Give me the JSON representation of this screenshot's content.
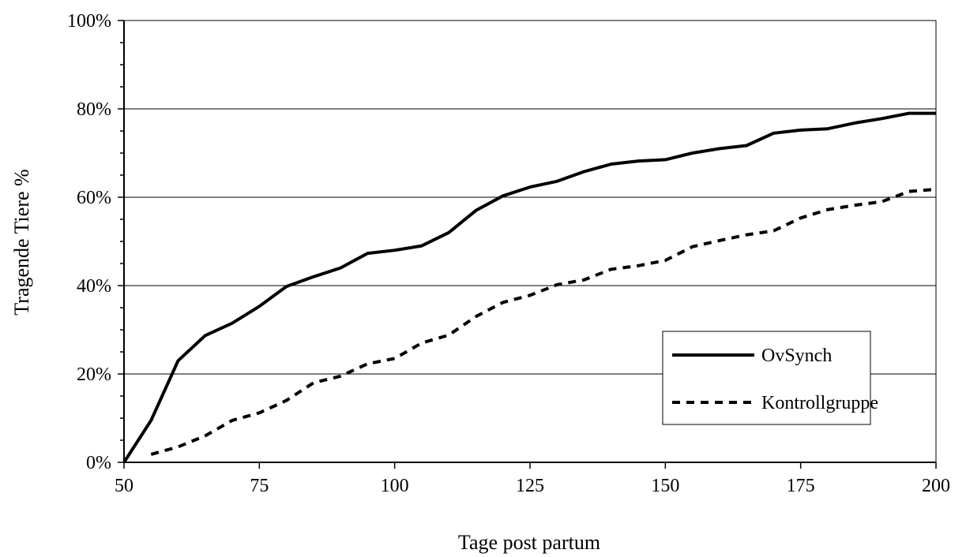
{
  "chart_data": {
    "type": "line",
    "title": "",
    "xlabel": "Tage post partum",
    "ylabel": "Tragende Tiere %",
    "xlim": [
      50,
      200
    ],
    "ylim": [
      0,
      100
    ],
    "x_ticks": [
      50,
      75,
      100,
      125,
      150,
      175,
      200
    ],
    "x_tick_labels": [
      "50",
      "75",
      "100",
      "125",
      "150",
      "175",
      "200"
    ],
    "y_ticks": [
      0,
      20,
      40,
      60,
      80,
      100
    ],
    "y_tick_labels": [
      "0%",
      "20%",
      "40%",
      "60%",
      "80%",
      "100%"
    ],
    "y_minor_step": 5,
    "grid": "horizontal",
    "legend_position": "lower-right",
    "series": [
      {
        "name": "OvSynch",
        "style": "solid",
        "color": "#000000",
        "points": [
          [
            50,
            0
          ],
          [
            55,
            9.5
          ],
          [
            60,
            23
          ],
          [
            65,
            28.7
          ],
          [
            70,
            31.5
          ],
          [
            75,
            35.3
          ],
          [
            80,
            39.8
          ],
          [
            85,
            42
          ],
          [
            90,
            44
          ],
          [
            95,
            47.3
          ],
          [
            100,
            48
          ],
          [
            105,
            49
          ],
          [
            110,
            52
          ],
          [
            115,
            57
          ],
          [
            120,
            60.3
          ],
          [
            125,
            62.3
          ],
          [
            130,
            63.6
          ],
          [
            135,
            65.8
          ],
          [
            140,
            67.5
          ],
          [
            145,
            68.2
          ],
          [
            150,
            68.5
          ],
          [
            155,
            70
          ],
          [
            160,
            71
          ],
          [
            165,
            71.7
          ],
          [
            170,
            74.5
          ],
          [
            175,
            75.2
          ],
          [
            180,
            75.5
          ],
          [
            185,
            76.8
          ],
          [
            190,
            77.8
          ],
          [
            195,
            79
          ],
          [
            200,
            79
          ]
        ]
      },
      {
        "name": "Kontrollgruppe",
        "style": "dashed",
        "color": "#000000",
        "points": [
          [
            55,
            1.8
          ],
          [
            60,
            3.5
          ],
          [
            65,
            6
          ],
          [
            70,
            9.5
          ],
          [
            75,
            11.2
          ],
          [
            80,
            14
          ],
          [
            85,
            18
          ],
          [
            90,
            19.5
          ],
          [
            95,
            22.3
          ],
          [
            100,
            23.5
          ],
          [
            105,
            27
          ],
          [
            110,
            28.8
          ],
          [
            115,
            33
          ],
          [
            120,
            36.2
          ],
          [
            125,
            37.8
          ],
          [
            130,
            40.2
          ],
          [
            135,
            41.3
          ],
          [
            140,
            43.7
          ],
          [
            145,
            44.5
          ],
          [
            150,
            45.7
          ],
          [
            155,
            48.8
          ],
          [
            160,
            50.2
          ],
          [
            165,
            51.5
          ],
          [
            170,
            52.4
          ],
          [
            175,
            55.3
          ],
          [
            180,
            57.2
          ],
          [
            185,
            58.2
          ],
          [
            190,
            59
          ],
          [
            195,
            61.3
          ],
          [
            200,
            61.8
          ]
        ]
      }
    ]
  }
}
